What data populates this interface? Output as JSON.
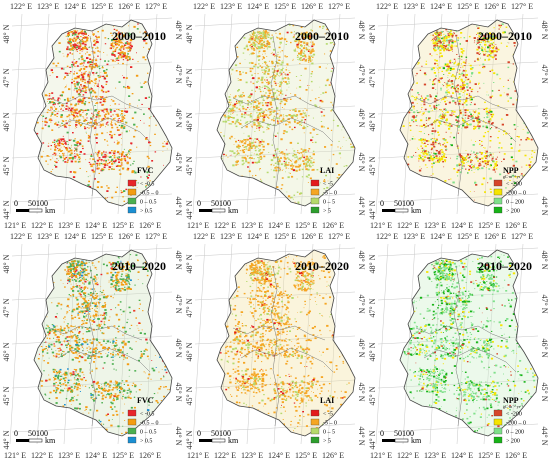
{
  "panels": [
    {
      "title": "2000–2010",
      "legend_title": "FVC",
      "legend_unit": "",
      "legend_items": [
        "< -0.5",
        "-0.5 – 0",
        "0 – 0.5",
        "> 0.5"
      ],
      "legend_colors": [
        "#e8262a",
        "#f39c12",
        "#4caf50",
        "#1b8fd2"
      ]
    },
    {
      "title": "2000–2010",
      "legend_title": "LAI",
      "legend_unit": "",
      "legend_items": [
        "< -5",
        "-5 – 0",
        "0 – 5",
        "> 5"
      ],
      "legend_colors": [
        "#e31a1c",
        "#f5a623",
        "#b5d96b",
        "#2e9e2e"
      ]
    },
    {
      "title": "2000–2010",
      "legend_title": "NPP",
      "legend_unit": "gC·m⁻²·yr⁻¹",
      "legend_items": [
        "< -200",
        "-200 – 0",
        "0 – 200",
        "> 200"
      ],
      "legend_colors": [
        "#d6452a",
        "#f5e400",
        "#7fe08a",
        "#18b318"
      ]
    },
    {
      "title": "2010–2020",
      "legend_title": "FVC",
      "legend_unit": "",
      "legend_items": [
        "< -0.5",
        "-0.5 – 0",
        "0 – 0.5",
        "> 0.5"
      ],
      "legend_colors": [
        "#e8262a",
        "#f39c12",
        "#4caf50",
        "#1b8fd2"
      ]
    },
    {
      "title": "2010–2020",
      "legend_title": "LAI",
      "legend_unit": "",
      "legend_items": [
        "< -5",
        "-5 – 0",
        "0 – 5",
        "> 5"
      ],
      "legend_colors": [
        "#e31a1c",
        "#f5a623",
        "#b5d96b",
        "#2e9e2e"
      ]
    },
    {
      "title": "2010–2020",
      "legend_title": "NPP",
      "legend_unit": "gC·m⁻²·yr⁻¹",
      "legend_items": [
        "< -200",
        "-200 – 0",
        "0 – 200",
        "> 200"
      ],
      "legend_colors": [
        "#d6452a",
        "#f5e400",
        "#7fe08a",
        "#18b318"
      ]
    }
  ],
  "top_ticks": [
    "122° E",
    "123° E",
    "124° E",
    "125° E",
    "126° E",
    "127° E"
  ],
  "bottom_ticks": [
    "121° E",
    "122° E",
    "123° E",
    "124° E",
    "125° E",
    "126° E"
  ],
  "left_ticks": [
    "48° N",
    "47° N",
    "46° N",
    "45° N",
    "44° N"
  ],
  "right_ticks": [
    "48° N",
    "47° N",
    "46° N",
    "45° N",
    "44° N"
  ],
  "scale_labels": [
    "0",
    "50",
    "100"
  ],
  "scale_unit": "km",
  "patterns": [
    {
      "dom": 1,
      "mix": [
        0.3,
        0.55,
        0.15,
        0.0
      ],
      "bg": "#dfe9c9"
    },
    {
      "dom": 2,
      "mix": [
        0.05,
        0.55,
        0.4,
        0.0
      ],
      "bg": "#dfe7bd"
    },
    {
      "dom": 0,
      "mix": [
        0.35,
        0.45,
        0.15,
        0.05
      ],
      "bg": "#f2e1a6"
    },
    {
      "dom": 1,
      "mix": [
        0.05,
        0.55,
        0.35,
        0.05
      ],
      "bg": "#cfe3bd"
    },
    {
      "dom": 1,
      "mix": [
        0.05,
        0.75,
        0.2,
        0.0
      ],
      "bg": "#f0df9a"
    },
    {
      "dom": 3,
      "mix": [
        0.05,
        0.15,
        0.55,
        0.25
      ],
      "bg": "#c9eec5"
    }
  ]
}
